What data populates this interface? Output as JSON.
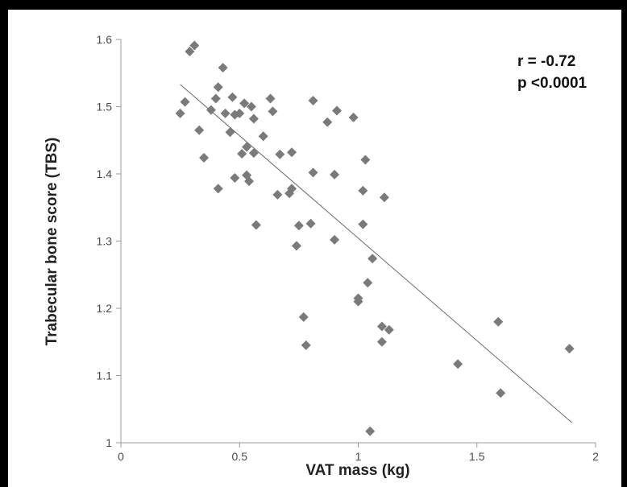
{
  "chart_data": {
    "type": "scatter",
    "title": "",
    "xlabel": "VAT mass (kg)",
    "ylabel": "Trabecular bone score (TBS)",
    "xlim": [
      0,
      2
    ],
    "ylim": [
      1,
      1.6
    ],
    "x_ticks": [
      "0",
      "0.5",
      "1",
      "1.5",
      "2"
    ],
    "y_ticks": [
      "1",
      "1.1",
      "1.2",
      "1.3",
      "1.4",
      "1.5",
      "1.6"
    ],
    "grid": false,
    "legend": "none",
    "annotations": [
      "r = -0.72",
      "p <0.0001"
    ],
    "marker_color": "#7a7a7a",
    "trendline": {
      "x": [
        0.25,
        1.9
      ],
      "y": [
        1.533,
        1.03
      ]
    },
    "points": [
      {
        "x": 0.25,
        "y": 1.49
      },
      {
        "x": 0.27,
        "y": 1.507
      },
      {
        "x": 0.29,
        "y": 1.582
      },
      {
        "x": 0.31,
        "y": 1.591
      },
      {
        "x": 0.33,
        "y": 1.465
      },
      {
        "x": 0.35,
        "y": 1.424
      },
      {
        "x": 0.38,
        "y": 1.495
      },
      {
        "x": 0.4,
        "y": 1.512
      },
      {
        "x": 0.41,
        "y": 1.529
      },
      {
        "x": 0.41,
        "y": 1.378
      },
      {
        "x": 0.43,
        "y": 1.558
      },
      {
        "x": 0.44,
        "y": 1.49
      },
      {
        "x": 0.46,
        "y": 1.462
      },
      {
        "x": 0.47,
        "y": 1.514
      },
      {
        "x": 0.48,
        "y": 1.488
      },
      {
        "x": 0.48,
        "y": 1.394
      },
      {
        "x": 0.5,
        "y": 1.49
      },
      {
        "x": 0.51,
        "y": 1.43
      },
      {
        "x": 0.52,
        "y": 1.505
      },
      {
        "x": 0.53,
        "y": 1.44
      },
      {
        "x": 0.53,
        "y": 1.398
      },
      {
        "x": 0.54,
        "y": 1.389
      },
      {
        "x": 0.55,
        "y": 1.5
      },
      {
        "x": 0.56,
        "y": 1.482
      },
      {
        "x": 0.56,
        "y": 1.431
      },
      {
        "x": 0.57,
        "y": 1.324
      },
      {
        "x": 0.6,
        "y": 1.456
      },
      {
        "x": 0.63,
        "y": 1.512
      },
      {
        "x": 0.64,
        "y": 1.493
      },
      {
        "x": 0.66,
        "y": 1.369
      },
      {
        "x": 0.67,
        "y": 1.429
      },
      {
        "x": 0.71,
        "y": 1.371
      },
      {
        "x": 0.72,
        "y": 1.432
      },
      {
        "x": 0.72,
        "y": 1.378
      },
      {
        "x": 0.74,
        "y": 1.293
      },
      {
        "x": 0.75,
        "y": 1.323
      },
      {
        "x": 0.77,
        "y": 1.187
      },
      {
        "x": 0.78,
        "y": 1.145
      },
      {
        "x": 0.8,
        "y": 1.326
      },
      {
        "x": 0.81,
        "y": 1.402
      },
      {
        "x": 0.81,
        "y": 1.509
      },
      {
        "x": 0.87,
        "y": 1.477
      },
      {
        "x": 0.9,
        "y": 1.399
      },
      {
        "x": 0.9,
        "y": 1.302
      },
      {
        "x": 0.91,
        "y": 1.494
      },
      {
        "x": 0.98,
        "y": 1.484
      },
      {
        "x": 1.0,
        "y": 1.215
      },
      {
        "x": 1.0,
        "y": 1.21
      },
      {
        "x": 1.02,
        "y": 1.375
      },
      {
        "x": 1.02,
        "y": 1.325
      },
      {
        "x": 1.03,
        "y": 1.421
      },
      {
        "x": 1.04,
        "y": 1.238
      },
      {
        "x": 1.05,
        "y": 1.017
      },
      {
        "x": 1.06,
        "y": 1.274
      },
      {
        "x": 1.1,
        "y": 1.173
      },
      {
        "x": 1.1,
        "y": 1.15
      },
      {
        "x": 1.11,
        "y": 1.365
      },
      {
        "x": 1.13,
        "y": 1.168
      },
      {
        "x": 1.42,
        "y": 1.117
      },
      {
        "x": 1.59,
        "y": 1.18
      },
      {
        "x": 1.6,
        "y": 1.074
      },
      {
        "x": 1.89,
        "y": 1.14
      }
    ]
  }
}
